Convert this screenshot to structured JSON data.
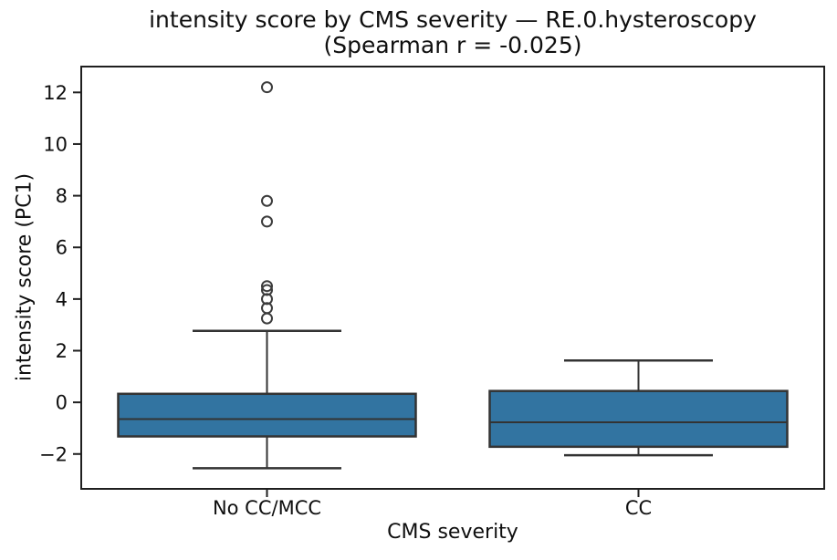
{
  "chart_data": {
    "type": "box",
    "title_line1": "intensity score by CMS severity — RE.0.hysteroscopy",
    "title_line2": "(Spearman r = -0.025)",
    "xlabel": "CMS severity",
    "ylabel": "intensity score (PC1)",
    "categories": [
      "No CC/MCC",
      "CC"
    ],
    "ylim": [
      -3.35,
      13.0
    ],
    "y_ticks": [
      -2,
      0,
      2,
      4,
      6,
      8,
      10,
      12
    ],
    "grid": false,
    "legend": "none",
    "boxes": [
      {
        "label": "No CC/MCC",
        "whisker_low": -2.55,
        "q1": -1.32,
        "median": -0.65,
        "q3": 0.33,
        "whisker_high": 2.77,
        "outliers": [
          3.25,
          3.65,
          4.0,
          4.35,
          4.5,
          7.0,
          7.8,
          12.2
        ]
      },
      {
        "label": "CC",
        "whisker_low": -2.05,
        "q1": -1.72,
        "median": -0.77,
        "q3": 0.44,
        "whisker_high": 1.62,
        "outliers": []
      }
    ],
    "colors": {
      "box_fill": "#3274a1",
      "line": "#333333",
      "flier_edge": "#3c3c3c",
      "axis": "#1f1f1f",
      "background": "#ffffff"
    }
  }
}
